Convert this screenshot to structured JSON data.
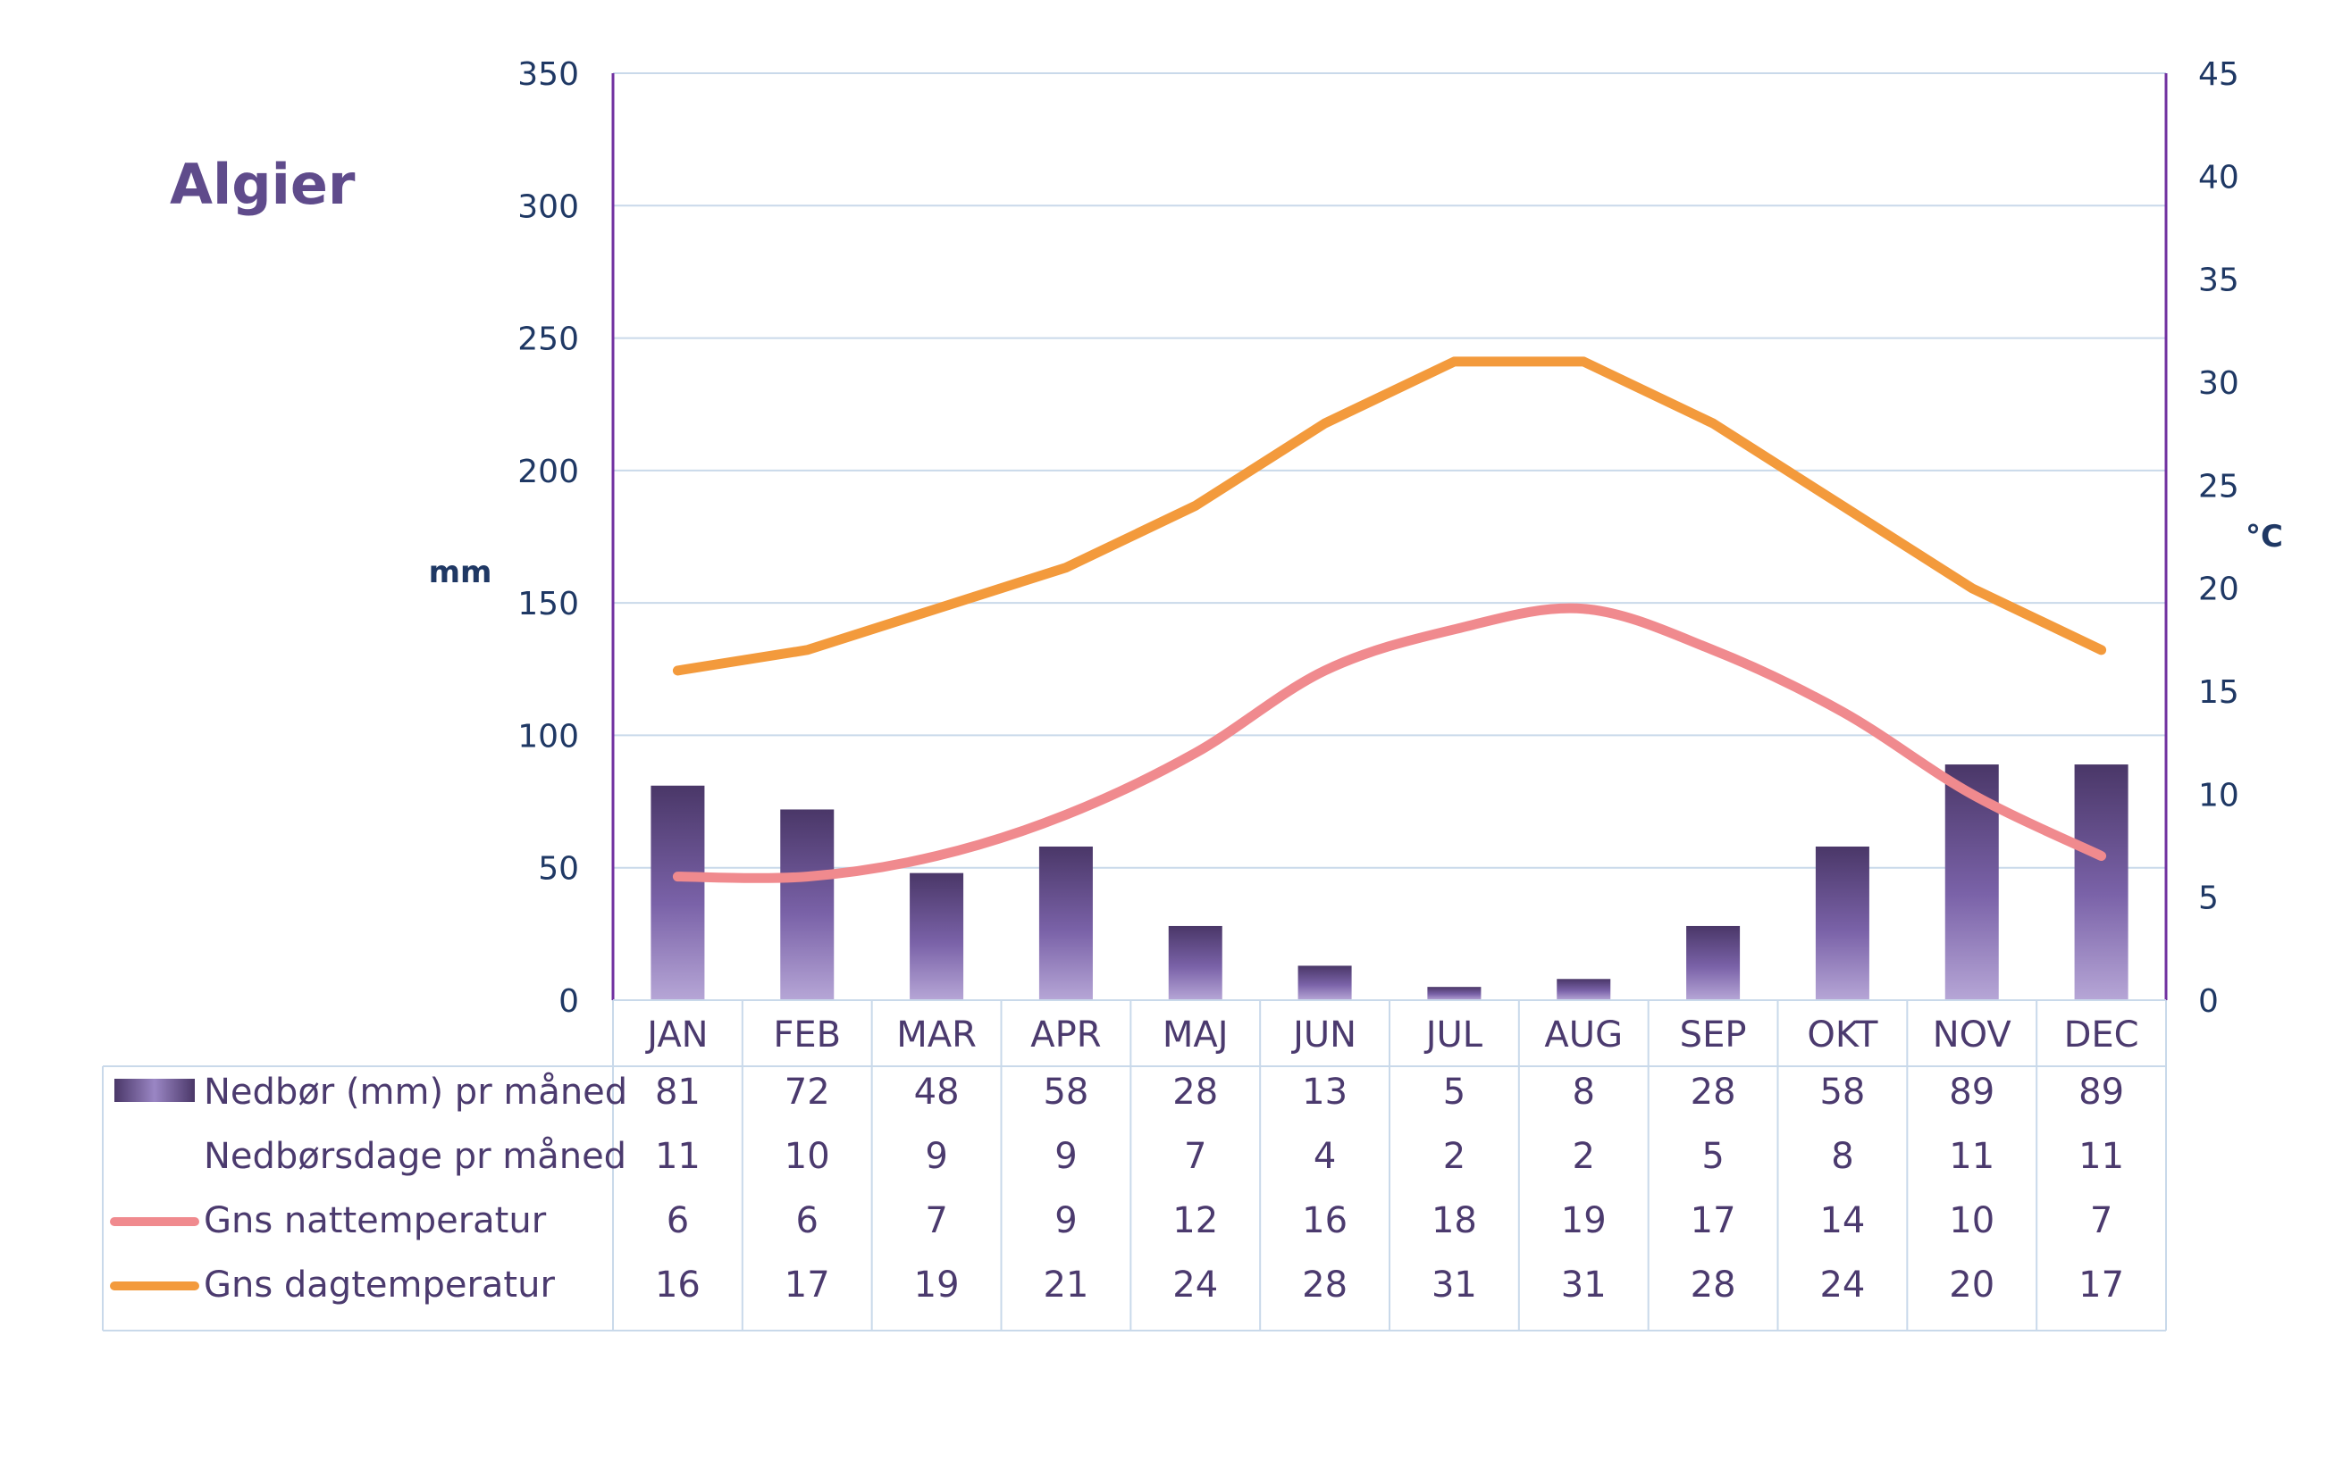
{
  "chart_data": {
    "type": "bar",
    "title": "Algier",
    "categories": [
      "JAN",
      "FEB",
      "MAR",
      "APR",
      "MAJ",
      "JUN",
      "JUL",
      "AUG",
      "SEP",
      "OKT",
      "NOV",
      "DEC"
    ],
    "ylabel_left": "mm",
    "ylabel_right": "°C",
    "ylim_left": [
      0,
      350
    ],
    "ylim_right": [
      0,
      45
    ],
    "yticks_left": [
      "0",
      "50",
      "100",
      "150",
      "200",
      "250",
      "300",
      "350"
    ],
    "yticks_right": [
      "0",
      "5",
      "10",
      "15",
      "20",
      "25",
      "30",
      "35",
      "40",
      "45"
    ],
    "grid": true,
    "series": [
      {
        "name": "Nedbør (mm) pr måned",
        "kind": "bar",
        "axis": "left",
        "color": "#5e4a8a",
        "values": [
          81,
          72,
          48,
          58,
          28,
          13,
          5,
          8,
          28,
          58,
          89,
          89
        ]
      },
      {
        "name": "Nedbørsdage pr måned",
        "kind": "table",
        "values": [
          11,
          10,
          9,
          9,
          7,
          4,
          2,
          2,
          5,
          8,
          11,
          11
        ]
      },
      {
        "name": "Gns nattemperatur",
        "kind": "line",
        "axis": "right",
        "color": "#f08a8e",
        "values": [
          6,
          6,
          7,
          9,
          12,
          16,
          18,
          19,
          17,
          14,
          10,
          7
        ]
      },
      {
        "name": "Gns dagtemperatur",
        "kind": "line",
        "axis": "right",
        "color": "#f39a3c",
        "values": [
          16,
          17,
          19,
          21,
          24,
          28,
          31,
          31,
          28,
          24,
          20,
          17
        ]
      }
    ],
    "colors": {
      "axis_text": "#1f3864",
      "axis_line": "#7030a0",
      "grid": "#c9d9ea",
      "table_text": "#4b3a6e",
      "table_border": "#c9d9ea"
    }
  }
}
